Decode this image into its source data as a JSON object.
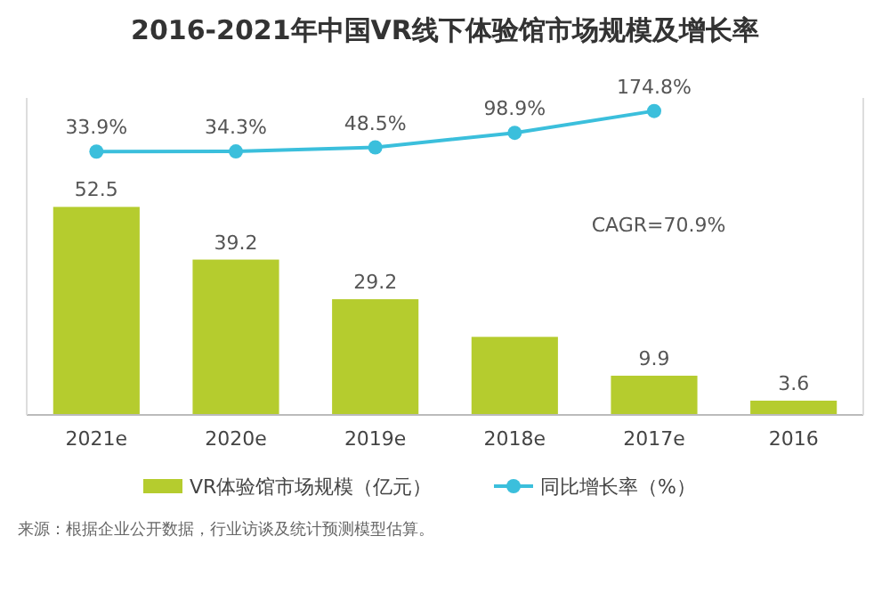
{
  "chart_data": {
    "type": "bar",
    "title": "2016-2021年中国VR线下体验馆市场规模及增长率",
    "categories": [
      "2021e",
      "2020e",
      "2019e",
      "2018e",
      "2017e",
      "2016"
    ],
    "series": [
      {
        "name": "VR体验馆市场规模（亿元）",
        "color": "#b5cc2e",
        "values": [
          52.5,
          39.2,
          29.2,
          19.7,
          9.9,
          3.6
        ],
        "value_labels": [
          "52.5",
          "39.2",
          "29.2",
          null,
          "9.9",
          "3.6"
        ]
      },
      {
        "name": "同比增长率（%）",
        "type": "line",
        "axis": "y2",
        "color": "#3bbfdc",
        "values": [
          33.9,
          34.3,
          48.5,
          98.9,
          174.8,
          null
        ],
        "value_labels": [
          "33.9%",
          "34.3%",
          "48.5%",
          "98.9%",
          "174.8%",
          null
        ]
      }
    ],
    "ylim": [
      0,
      80
    ],
    "y2lim": [
      -880,
      220
    ],
    "tick_labels": "x",
    "marker": "circle",
    "legend": "bottom",
    "grid": false,
    "annotations": [
      {
        "text": "CAGR=70.9%"
      },
      "来源：根据企业公开数据，行业访谈及统计预测模型估算。"
    ]
  }
}
